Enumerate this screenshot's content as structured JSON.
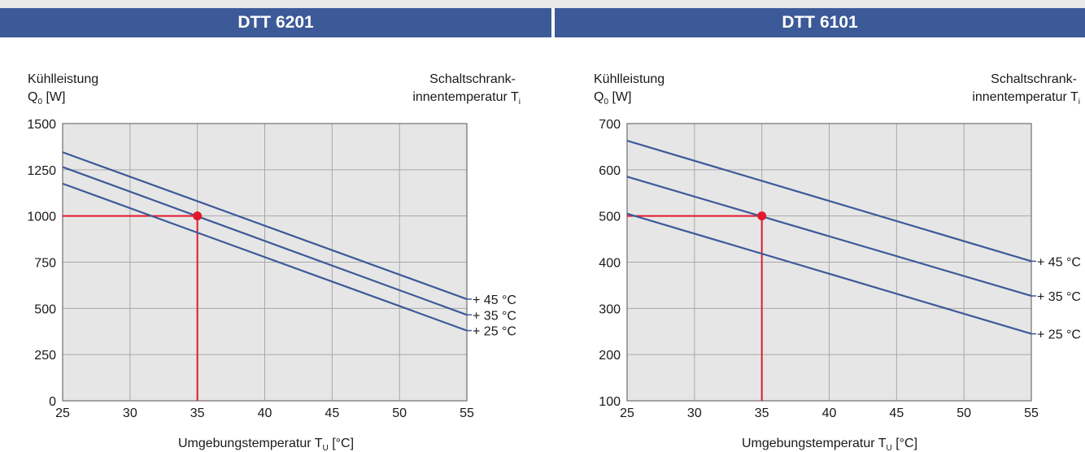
{
  "panels": [
    {
      "header": "DTT 6201",
      "chart_data": {
        "type": "line",
        "title": "DTT 6201",
        "ylabel_line1": "Kühlleistung",
        "ylabel_line2_main": "Q",
        "ylabel_line2_sub": "0",
        "ylabel_line2_unit": " [W]",
        "legend_title_line1": "Schaltschrank-",
        "legend_title_line2_main": "innentemperatur T",
        "legend_title_line2_sub": "i",
        "xlabel_main": "Umgebungstemperatur T",
        "xlabel_sub": "U",
        "xlabel_unit": " [°C]",
        "xlim": [
          25,
          55
        ],
        "ylim": [
          0,
          1500
        ],
        "xticks": [
          25,
          30,
          35,
          40,
          45,
          50,
          55
        ],
        "yticks": [
          0,
          250,
          500,
          750,
          1000,
          1250,
          1500
        ],
        "grid": true,
        "series": [
          {
            "name": "+ 45 °C",
            "x": [
              25,
              55
            ],
            "y": [
              1345,
              550
            ]
          },
          {
            "name": "+ 35 °C",
            "x": [
              25,
              55
            ],
            "y": [
              1265,
              465
            ]
          },
          {
            "name": "+ 25 °C",
            "x": [
              25,
              55
            ],
            "y": [
              1175,
              380
            ]
          }
        ],
        "reference_point": {
          "x": 35,
          "y": 1000
        },
        "colors": {
          "series": "#3d5a98",
          "reference": "#e3192b",
          "plot_bg": "#e6e6e6",
          "grid": "#a8a8a8"
        }
      }
    },
    {
      "header": "DTT 6101",
      "chart_data": {
        "type": "line",
        "title": "DTT 6101",
        "ylabel_line1": "Kühlleistung",
        "ylabel_line2_main": "Q",
        "ylabel_line2_sub": "0",
        "ylabel_line2_unit": " [W]",
        "legend_title_line1": "Schaltschrank-",
        "legend_title_line2_main": "innentemperatur T",
        "legend_title_line2_sub": "i",
        "xlabel_main": "Umgebungstemperatur T",
        "xlabel_sub": "U",
        "xlabel_unit": " [°C]",
        "xlim": [
          25,
          55
        ],
        "ylim": [
          100,
          700
        ],
        "xticks": [
          25,
          30,
          35,
          40,
          45,
          50,
          55
        ],
        "yticks": [
          100,
          200,
          300,
          400,
          500,
          600,
          700
        ],
        "grid": true,
        "series": [
          {
            "name": "+ 45 °C",
            "x": [
              25,
              55
            ],
            "y": [
              663,
              402
            ]
          },
          {
            "name": "+ 35 °C",
            "x": [
              25,
              55
            ],
            "y": [
              585,
              327
            ]
          },
          {
            "name": "+ 25 °C",
            "x": [
              25,
              55
            ],
            "y": [
              505,
              245
            ]
          }
        ],
        "reference_point": {
          "x": 35,
          "y": 500
        },
        "colors": {
          "series": "#3d5a98",
          "reference": "#e3192b",
          "plot_bg": "#e6e6e6",
          "grid": "#a8a8a8"
        }
      }
    }
  ]
}
